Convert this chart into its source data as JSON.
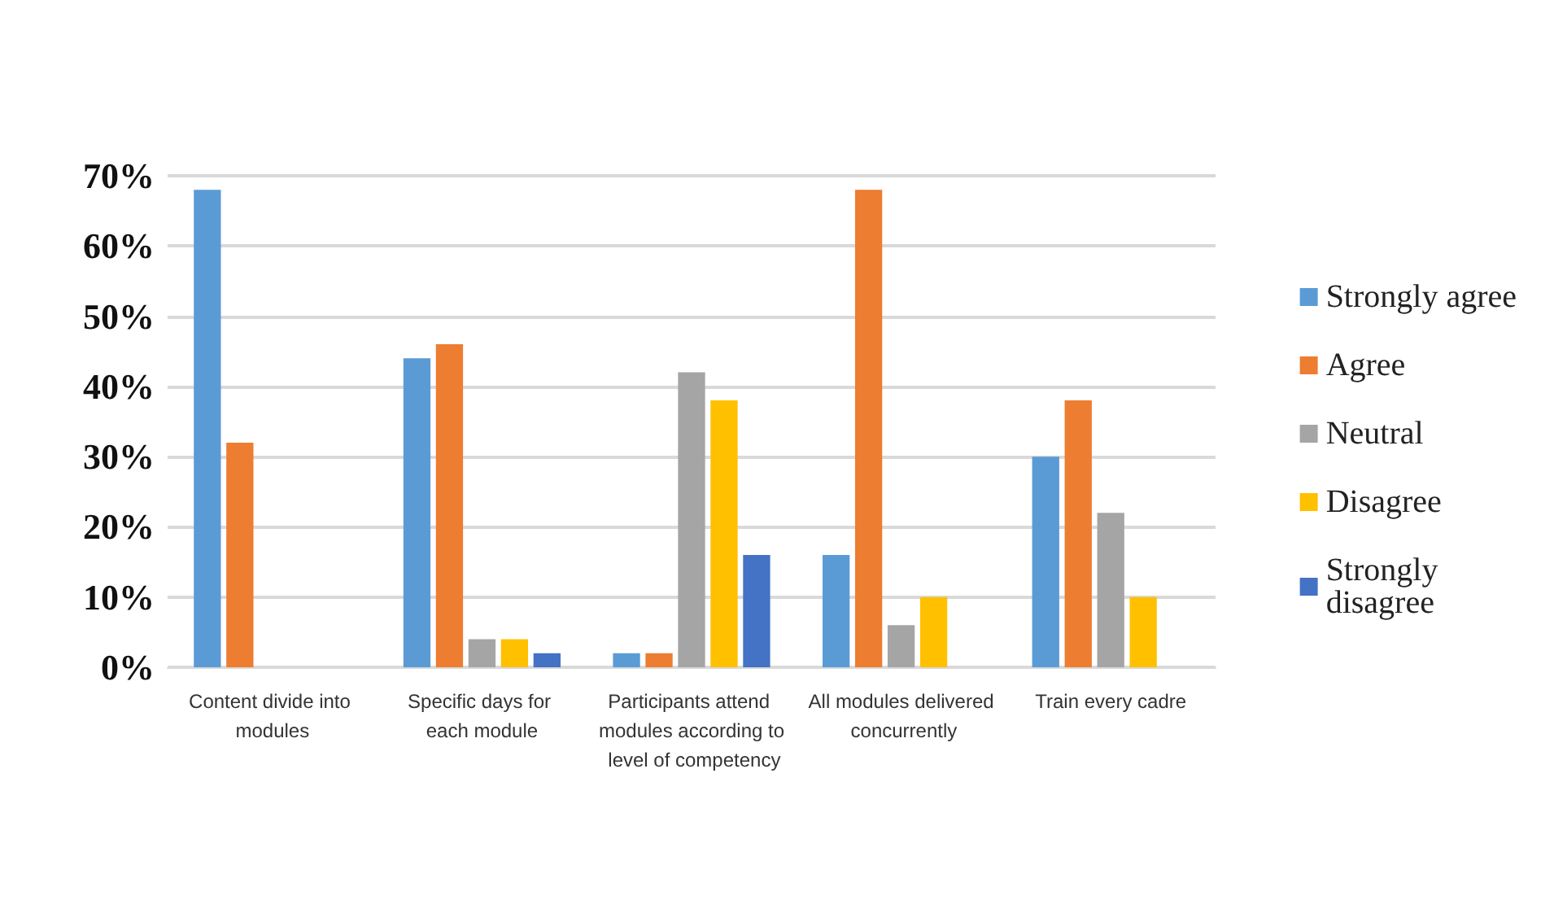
{
  "chart_data": {
    "type": "bar",
    "categories": [
      "Content divide into modules",
      "Specific days for each module",
      "Participants attend modules according to level of competency",
      "All modules delivered concurrently",
      "Train every cadre"
    ],
    "series": [
      {
        "name": "Strongly agree",
        "color": "#5b9bd5",
        "values": [
          68,
          44,
          2,
          16,
          30
        ]
      },
      {
        "name": "Agree",
        "color": "#ed7d31",
        "values": [
          32,
          46,
          2,
          68,
          38
        ]
      },
      {
        "name": "Neutral",
        "color": "#a5a5a5",
        "values": [
          0,
          4,
          42,
          6,
          22
        ]
      },
      {
        "name": "Disagree",
        "color": "#ffc000",
        "values": [
          0,
          4,
          38,
          10,
          10
        ]
      },
      {
        "name": "Strongly disagree",
        "color": "#4472c4",
        "values": [
          0,
          2,
          16,
          0,
          0
        ]
      }
    ],
    "ylim": [
      0,
      70
    ],
    "yticks": [
      {
        "value": 0,
        "label": "0%"
      },
      {
        "value": 10,
        "label": "10%"
      },
      {
        "value": 20,
        "label": "20%"
      },
      {
        "value": 30,
        "label": "30%"
      },
      {
        "value": 40,
        "label": "40%"
      },
      {
        "value": 50,
        "label": "50%"
      },
      {
        "value": 60,
        "label": "60%"
      },
      {
        "value": 70,
        "label": "70%"
      }
    ],
    "grid": "y",
    "legend": "right"
  }
}
